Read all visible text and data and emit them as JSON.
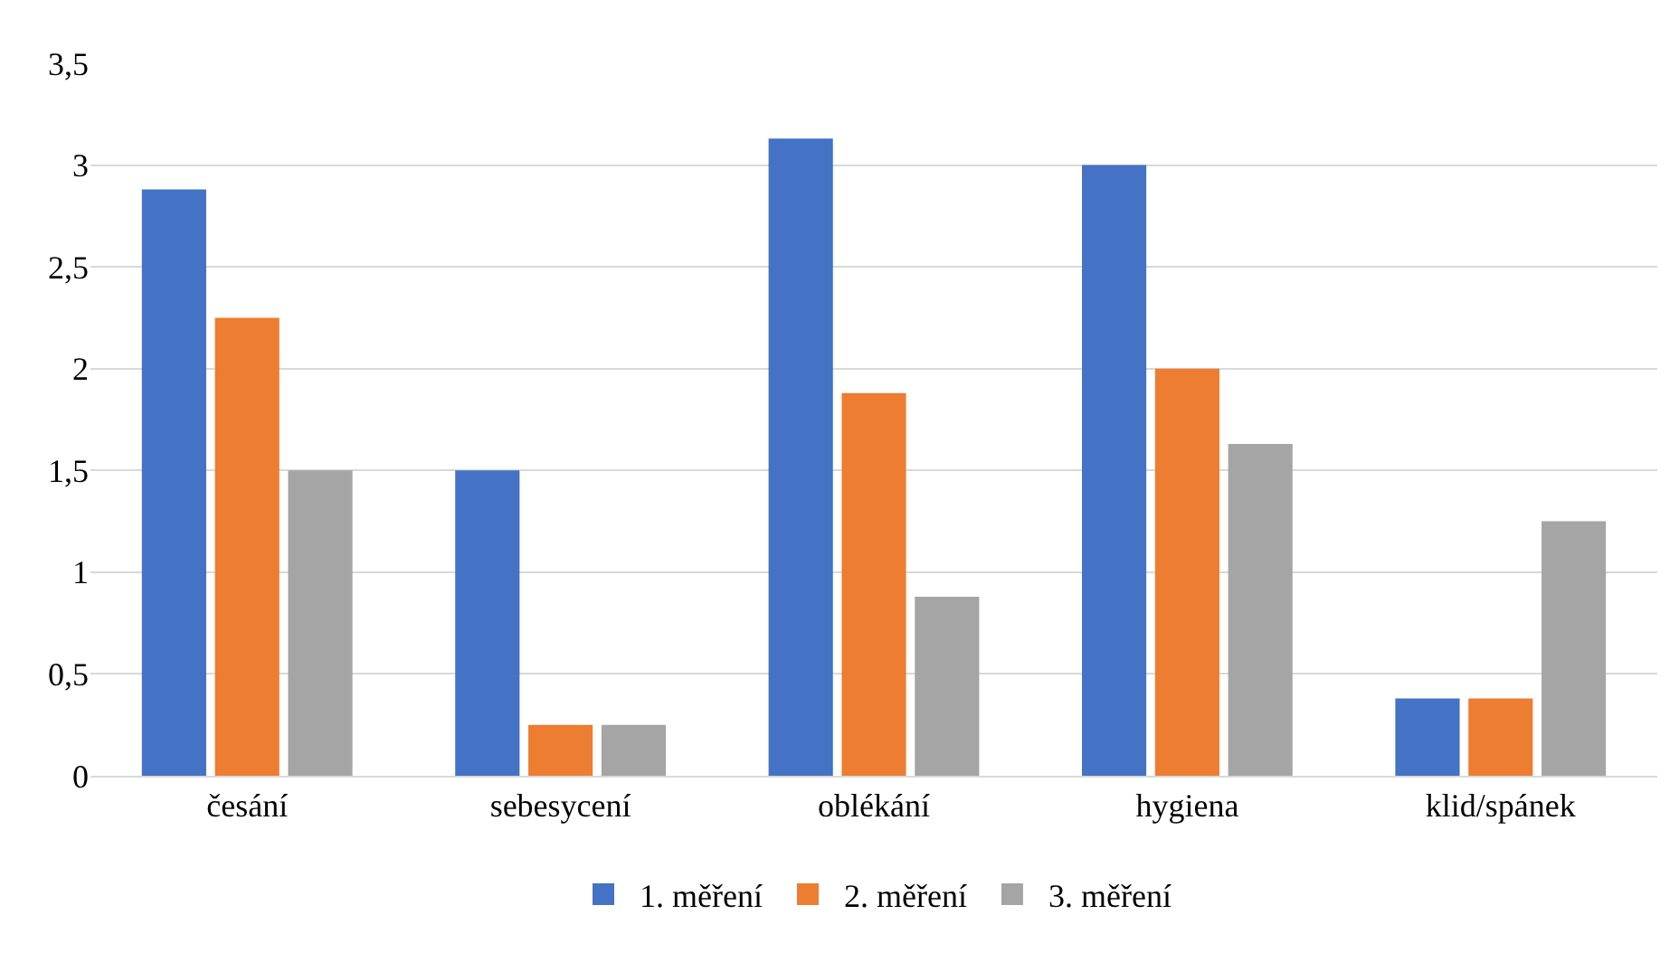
{
  "chart_data": {
    "type": "bar",
    "categories": [
      "česání",
      "sebesycení",
      "oblékání",
      "hygiena",
      "klid/spánek"
    ],
    "series": [
      {
        "name": "1. měření",
        "color": "#4472c4",
        "values": [
          2.88,
          1.5,
          3.13,
          3,
          0.38
        ]
      },
      {
        "name": "2. měření",
        "color": "#ed7d31",
        "values": [
          2.25,
          0.25,
          1.88,
          2,
          0.38
        ]
      },
      {
        "name": "3. měření",
        "color": "#a5a5a5",
        "values": [
          1.5,
          0.25,
          0.88,
          1.63,
          1.25
        ]
      }
    ],
    "ylim": [
      0,
      3.5
    ],
    "yticks": [
      0,
      {
        "value": 0.5,
        "label": "0,5"
      },
      1,
      {
        "value": 1.5,
        "label": "1,5"
      },
      2,
      {
        "value": 2.5,
        "label": "2,5"
      },
      3,
      {
        "value": 3.5,
        "label": "3,5"
      }
    ],
    "grid": "y",
    "legend": "bottom"
  }
}
